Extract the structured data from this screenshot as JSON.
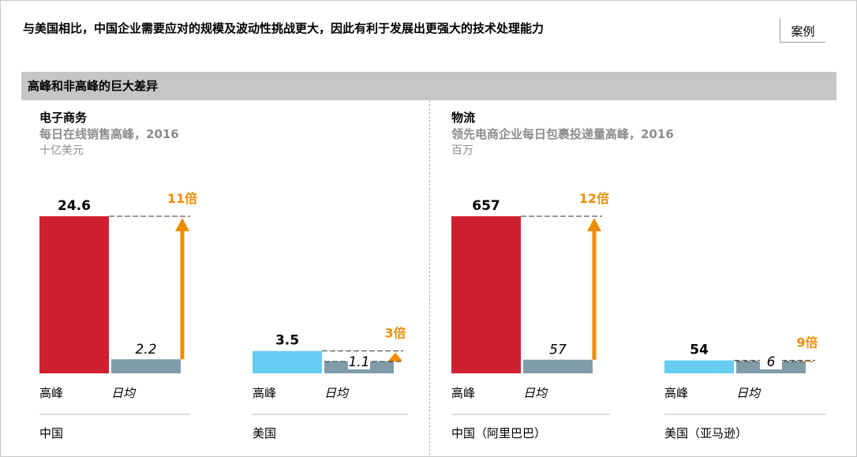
{
  "headline": "与美国相比，中国企业需要应对的规模及波动性挑战更大，因此有利于发展出更强大的技术处理能力",
  "badge": "案例",
  "section_title": "高峰和非高峰的巨大差异",
  "panels": [
    {
      "title": "电子商务",
      "subtitle": "每日在线销售高峰，2016",
      "unit": "十亿美元"
    },
    {
      "title": "物流",
      "subtitle": "领先电商企业每日包裹投递量高峰，2016",
      "unit": "百万"
    }
  ],
  "colors": {
    "china_peak": "#d0202f",
    "us_peak": "#66ccf2",
    "average": "#7f9ca8",
    "arrow": "#f08c00"
  },
  "chart_data": [
    {
      "type": "bar",
      "title": "电子商务",
      "subtitle": "每日在线销售高峰，2016",
      "unit": "十亿美元",
      "categories": [
        "高峰",
        "日均"
      ],
      "groups": [
        {
          "name": "中国",
          "values": [
            24.6,
            2.2
          ],
          "labels": [
            "24.6",
            "2.2"
          ],
          "multiple": "11倍"
        },
        {
          "name": "美国",
          "values": [
            3.5,
            1.1
          ],
          "labels": [
            "3.5",
            "1.1"
          ],
          "multiple": "3倍"
        }
      ]
    },
    {
      "type": "bar",
      "title": "物流",
      "subtitle": "领先电商企业每日包裹投递量高峰，2016",
      "unit": "百万",
      "categories": [
        "高峰",
        "日均"
      ],
      "groups": [
        {
          "name": "中国（阿里巴巴）",
          "values": [
            657,
            57
          ],
          "labels": [
            "657",
            "57"
          ],
          "multiple": "12倍"
        },
        {
          "name": "美国（亚马逊）",
          "values": [
            54,
            6
          ],
          "labels": [
            "54",
            "6"
          ],
          "multiple": "9倍"
        }
      ]
    }
  ]
}
